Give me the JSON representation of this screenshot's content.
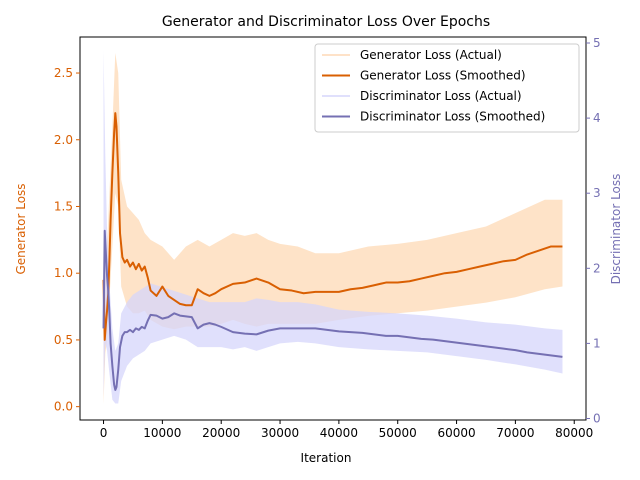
{
  "chart_data": {
    "type": "line",
    "title": "Generator and Discriminator Loss Over Epochs",
    "xlabel": "Iteration",
    "ylabel_left": "Generator Loss",
    "ylabel_right": "Discriminator Loss",
    "xlim": [
      -4000,
      82000
    ],
    "ylim_left": [
      -0.1,
      2.77
    ],
    "ylim_right": [
      -0.02,
      5.08
    ],
    "x_ticks": [
      0,
      10000,
      20000,
      30000,
      40000,
      50000,
      60000,
      70000,
      80000
    ],
    "y_ticks_left": [
      0.0,
      0.5,
      1.0,
      1.5,
      2.0,
      2.5
    ],
    "y_ticks_right": [
      0,
      1,
      2,
      3,
      4,
      5
    ],
    "grid": false,
    "legend_position": "top-right",
    "colors": {
      "generator": "#d95f02",
      "generator_actual": "#fdd9b5",
      "discriminator": "#7570b3",
      "discriminator_actual": "#d6d6fb"
    },
    "series": [
      {
        "name": "Generator Loss (Actual)",
        "axis": "left",
        "style": "band",
        "x": [
          0,
          300,
          600,
          1000,
          1500,
          2000,
          2500,
          3000,
          4000,
          5000,
          6000,
          7000,
          8000,
          10000,
          12000,
          14000,
          16000,
          18000,
          20000,
          22000,
          24000,
          26000,
          28000,
          30000,
          33000,
          36000,
          40000,
          45000,
          50000,
          55000,
          60000,
          65000,
          70000,
          75000,
          78000
        ],
        "lower": [
          0.02,
          0.4,
          0.5,
          0.8,
          1.2,
          1.6,
          1.5,
          0.9,
          0.75,
          0.7,
          0.7,
          0.72,
          0.65,
          0.6,
          0.58,
          0.6,
          0.6,
          0.6,
          0.62,
          0.65,
          0.62,
          0.6,
          0.62,
          0.62,
          0.62,
          0.62,
          0.65,
          0.68,
          0.7,
          0.72,
          0.75,
          0.78,
          0.82,
          0.88,
          0.9
        ],
        "upper": [
          1.2,
          1.1,
          1.2,
          1.6,
          2.1,
          2.65,
          2.5,
          1.7,
          1.5,
          1.45,
          1.4,
          1.3,
          1.25,
          1.2,
          1.1,
          1.2,
          1.25,
          1.2,
          1.25,
          1.3,
          1.28,
          1.3,
          1.25,
          1.22,
          1.2,
          1.15,
          1.15,
          1.2,
          1.22,
          1.25,
          1.3,
          1.35,
          1.45,
          1.55,
          1.55
        ]
      },
      {
        "name": "Generator Loss (Smoothed)",
        "axis": "left",
        "style": "line",
        "x": [
          0,
          200,
          400,
          600,
          800,
          1000,
          1200,
          1500,
          1800,
          2000,
          2200,
          2500,
          2800,
          3200,
          3600,
          4000,
          4500,
          5000,
          5500,
          6000,
          6500,
          7000,
          7500,
          8000,
          9000,
          10000,
          11000,
          12000,
          13000,
          14000,
          15000,
          16000,
          17000,
          18000,
          19000,
          20000,
          22000,
          24000,
          26000,
          28000,
          30000,
          32000,
          34000,
          36000,
          38000,
          40000,
          42000,
          44000,
          46000,
          48000,
          50000,
          52000,
          54000,
          56000,
          58000,
          60000,
          62000,
          64000,
          66000,
          68000,
          70000,
          72000,
          74000,
          76000,
          78000
        ],
        "y": [
          0.95,
          0.5,
          0.62,
          0.72,
          0.85,
          1.1,
          1.4,
          1.75,
          2.05,
          2.2,
          2.1,
          1.75,
          1.3,
          1.12,
          1.08,
          1.1,
          1.05,
          1.08,
          1.03,
          1.07,
          1.02,
          1.05,
          0.97,
          0.87,
          0.83,
          0.9,
          0.83,
          0.8,
          0.77,
          0.76,
          0.76,
          0.88,
          0.85,
          0.83,
          0.85,
          0.88,
          0.92,
          0.93,
          0.96,
          0.93,
          0.88,
          0.87,
          0.85,
          0.86,
          0.86,
          0.86,
          0.88,
          0.89,
          0.91,
          0.93,
          0.93,
          0.94,
          0.96,
          0.98,
          1.0,
          1.01,
          1.03,
          1.05,
          1.07,
          1.09,
          1.1,
          1.14,
          1.17,
          1.2,
          1.2
        ]
      },
      {
        "name": "Discriminator Loss (Actual)",
        "axis": "right",
        "style": "band",
        "x": [
          0,
          300,
          600,
          1000,
          1500,
          2000,
          2500,
          3000,
          4000,
          5000,
          6000,
          7000,
          8000,
          10000,
          12000,
          14000,
          16000,
          18000,
          20000,
          22000,
          24000,
          26000,
          28000,
          30000,
          33000,
          36000,
          40000,
          45000,
          50000,
          55000,
          60000,
          65000,
          70000,
          75000,
          78000
        ],
        "lower": [
          0.3,
          1.0,
          0.9,
          0.6,
          0.25,
          0.2,
          0.2,
          0.5,
          0.7,
          0.8,
          0.85,
          0.9,
          1.0,
          1.05,
          1.1,
          1.05,
          0.95,
          0.95,
          0.95,
          0.92,
          0.95,
          0.9,
          0.95,
          1.0,
          1.02,
          1.0,
          0.95,
          0.92,
          0.9,
          0.88,
          0.83,
          0.78,
          0.72,
          0.65,
          0.6
        ],
        "upper": [
          4.9,
          3.5,
          2.5,
          1.8,
          1.2,
          0.9,
          1.0,
          1.4,
          1.55,
          1.65,
          1.7,
          1.75,
          1.8,
          1.75,
          1.7,
          1.65,
          1.6,
          1.55,
          1.55,
          1.55,
          1.55,
          1.6,
          1.58,
          1.55,
          1.55,
          1.52,
          1.45,
          1.42,
          1.4,
          1.37,
          1.33,
          1.28,
          1.25,
          1.2,
          1.18
        ]
      },
      {
        "name": "Discriminator Loss (Smoothed)",
        "axis": "right",
        "style": "line",
        "x": [
          0,
          200,
          400,
          600,
          800,
          1000,
          1200,
          1500,
          1800,
          2000,
          2200,
          2500,
          2800,
          3200,
          3600,
          4000,
          4500,
          5000,
          5500,
          6000,
          6500,
          7000,
          7500,
          8000,
          9000,
          10000,
          11000,
          12000,
          13000,
          14000,
          15000,
          16000,
          17000,
          18000,
          19000,
          20000,
          22000,
          24000,
          26000,
          28000,
          30000,
          32000,
          34000,
          36000,
          38000,
          40000,
          42000,
          44000,
          46000,
          48000,
          50000,
          52000,
          54000,
          56000,
          58000,
          60000,
          62000,
          64000,
          66000,
          68000,
          70000,
          72000,
          74000,
          76000,
          78000
        ],
        "y": [
          1.2,
          2.5,
          2.2,
          1.9,
          1.7,
          1.4,
          1.0,
          0.7,
          0.45,
          0.38,
          0.42,
          0.65,
          0.95,
          1.1,
          1.15,
          1.15,
          1.18,
          1.15,
          1.2,
          1.18,
          1.22,
          1.2,
          1.3,
          1.38,
          1.37,
          1.33,
          1.35,
          1.4,
          1.37,
          1.36,
          1.35,
          1.2,
          1.25,
          1.27,
          1.25,
          1.22,
          1.15,
          1.13,
          1.12,
          1.17,
          1.2,
          1.2,
          1.2,
          1.2,
          1.18,
          1.16,
          1.15,
          1.14,
          1.12,
          1.1,
          1.1,
          1.08,
          1.06,
          1.05,
          1.03,
          1.01,
          0.99,
          0.97,
          0.95,
          0.93,
          0.91,
          0.88,
          0.86,
          0.84,
          0.82
        ]
      }
    ]
  }
}
